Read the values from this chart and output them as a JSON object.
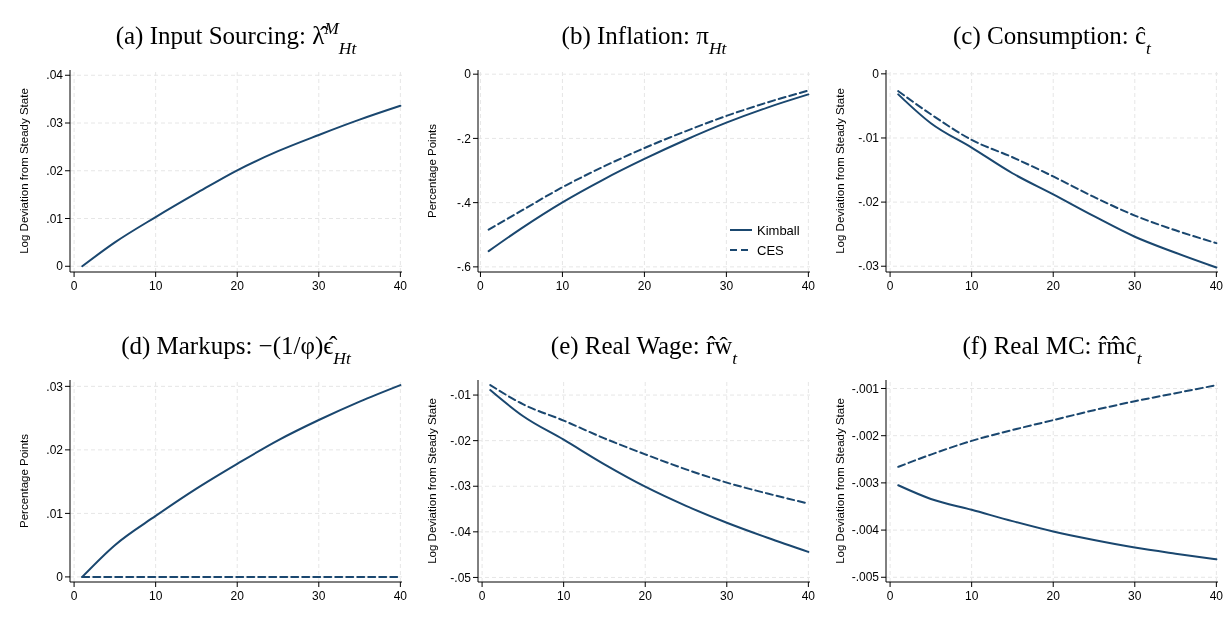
{
  "chart_data": [
    {
      "type": "line",
      "title": "(a) Input Sourcing: λ̂$^{M}$$_{Ht}$",
      "ylabel": "Log Deviation from Steady State",
      "x": [
        1,
        5,
        10,
        15,
        20,
        25,
        30,
        35,
        40
      ],
      "xlim": [
        -0.5,
        40.2
      ],
      "xticks": [
        0,
        10,
        20,
        30,
        40
      ],
      "ylim": [
        -0.0012,
        0.0411
      ],
      "yticks": [
        {
          "value": 0,
          "label": "0"
        },
        {
          "value": 0.01,
          "label": ".01"
        },
        {
          "value": 0.02,
          "label": ".02"
        },
        {
          "value": 0.03,
          "label": ".03"
        },
        {
          "value": 0.04,
          "label": ".04"
        }
      ],
      "grid": true,
      "legend": false,
      "series": [
        {
          "color": "#1a476f",
          "line_style": "solid",
          "values": [
            0,
            0.005,
            0.0103,
            0.0153,
            0.0201,
            0.0241,
            0.0275,
            0.0307,
            0.0336
          ]
        }
      ]
    },
    {
      "type": "line",
      "title": "(b) Inflation: π$_{Ht}$",
      "ylabel": "Percentage Points",
      "x": [
        1,
        5,
        10,
        15,
        20,
        25,
        30,
        35,
        40
      ],
      "xlim": [
        -0.3,
        40.2
      ],
      "xticks": [
        0,
        10,
        20,
        30,
        40
      ],
      "ylim": [
        -0.616,
        0.013
      ],
      "yticks": [
        {
          "value": -0.6,
          "label": "-.6"
        },
        {
          "value": -0.4,
          "label": "-.4"
        },
        {
          "value": -0.2,
          "label": "-.2"
        },
        {
          "value": 0,
          "label": "0"
        }
      ],
      "grid": true,
      "legend": "bottom right",
      "series": [
        {
          "name": "Kimball",
          "color": "#1a476f",
          "line_style": "solid",
          "values": [
            -0.551,
            -0.48,
            -0.399,
            -0.328,
            -0.264,
            -0.205,
            -0.151,
            -0.104,
            -0.063
          ]
        },
        {
          "name": "CES",
          "color": "#1a476f",
          "line_style": "dashed",
          "values": [
            -0.484,
            -0.425,
            -0.352,
            -0.288,
            -0.23,
            -0.178,
            -0.13,
            -0.088,
            -0.051
          ]
        }
      ]
    },
    {
      "type": "line",
      "title": "(c) Consumption: ĉ$_{t}$",
      "ylabel": "Log Deviation from Steady State",
      "x": [
        1,
        5,
        10,
        15,
        20,
        25,
        30,
        35,
        40
      ],
      "xlim": [
        -0.5,
        40.2
      ],
      "xticks": [
        0,
        10,
        20,
        30,
        40
      ],
      "ylim": [
        -0.0309,
        0.0006
      ],
      "yticks": [
        {
          "value": -0.03,
          "label": "-.03"
        },
        {
          "value": -0.02,
          "label": "-.02"
        },
        {
          "value": -0.01,
          "label": "-.01"
        },
        {
          "value": 0,
          "label": "0"
        }
      ],
      "grid": true,
      "legend": false,
      "series": [
        {
          "color": "#1a476f",
          "line_style": "solid",
          "values": [
            -0.0032,
            -0.0077,
            -0.0115,
            -0.0155,
            -0.0188,
            -0.0222,
            -0.0254,
            -0.0279,
            -0.0302
          ]
        },
        {
          "color": "#1a476f",
          "line_style": "dashed",
          "values": [
            -0.0027,
            -0.0063,
            -0.0103,
            -0.013,
            -0.016,
            -0.0192,
            -0.0221,
            -0.0244,
            -0.0264
          ]
        }
      ]
    },
    {
      "type": "line",
      "title": "(d) Markups: −(1/φ)ϵ̂$_{Ht}$",
      "ylabel": "Percentage Points",
      "x": [
        1,
        5,
        10,
        15,
        20,
        25,
        30,
        35,
        40
      ],
      "xlim": [
        -0.5,
        40.2
      ],
      "xticks": [
        0,
        10,
        20,
        30,
        40
      ],
      "ylim": [
        -0.0008,
        0.031
      ],
      "yticks": [
        {
          "value": 0,
          "label": "0"
        },
        {
          "value": 0.01,
          "label": ".01"
        },
        {
          "value": 0.02,
          "label": ".02"
        },
        {
          "value": 0.03,
          "label": ".03"
        }
      ],
      "grid": true,
      "legend": false,
      "series": [
        {
          "color": "#1a476f",
          "line_style": "solid",
          "values": [
            0,
            0.005,
            0.0096,
            0.0139,
            0.0178,
            0.0215,
            0.0247,
            0.0276,
            0.0302
          ]
        },
        {
          "color": "#1a476f",
          "line_style": "dashed",
          "values": [
            0,
            0,
            0,
            0,
            0,
            0,
            0,
            0,
            0
          ]
        }
      ]
    },
    {
      "type": "line",
      "title": "(e) Real Wage: r̂ŵ$_{t}$",
      "ylabel": "Log Deviation from Steady State",
      "x": [
        1,
        5,
        10,
        15,
        20,
        25,
        30,
        35,
        40
      ],
      "xlim": [
        -0.5,
        40.2
      ],
      "xticks": [
        0,
        10,
        20,
        30,
        40
      ],
      "ylim": [
        -0.051,
        -0.0067
      ],
      "yticks": [
        {
          "value": -0.05,
          "label": "-.05"
        },
        {
          "value": -0.04,
          "label": "-.04"
        },
        {
          "value": -0.03,
          "label": "-.03"
        },
        {
          "value": -0.02,
          "label": "-.02"
        },
        {
          "value": -0.01,
          "label": "-.01"
        }
      ],
      "grid": true,
      "legend": false,
      "series": [
        {
          "color": "#1a476f",
          "line_style": "solid",
          "values": [
            -0.0089,
            -0.0146,
            -0.0198,
            -0.0252,
            -0.0301,
            -0.0343,
            -0.038,
            -0.0413,
            -0.0444
          ]
        },
        {
          "color": "#1a476f",
          "line_style": "dashed",
          "values": [
            -0.0078,
            -0.012,
            -0.0156,
            -0.0195,
            -0.023,
            -0.0263,
            -0.0292,
            -0.0316,
            -0.0338
          ]
        }
      ]
    },
    {
      "type": "line",
      "title": "(f) Real MC: r̂m̂ĉ$_{t}$",
      "ylabel": "Log Deviation from Steady State",
      "x": [
        1,
        5,
        10,
        15,
        20,
        25,
        30,
        35,
        40
      ],
      "xlim": [
        -0.5,
        40.2
      ],
      "xticks": [
        0,
        10,
        20,
        30,
        40
      ],
      "ylim": [
        -0.0051,
        -0.00082
      ],
      "yticks": [
        {
          "value": -0.005,
          "label": "-.005"
        },
        {
          "value": -0.004,
          "label": "-.004"
        },
        {
          "value": -0.003,
          "label": "-.003"
        },
        {
          "value": -0.002,
          "label": "-.002"
        },
        {
          "value": -0.001,
          "label": "-.001"
        }
      ],
      "grid": true,
      "legend": false,
      "series": [
        {
          "color": "#1a476f",
          "line_style": "solid",
          "values": [
            -0.00305,
            -0.00334,
            -0.00357,
            -0.00381,
            -0.00403,
            -0.00421,
            -0.00437,
            -0.0045,
            -0.00462
          ]
        },
        {
          "color": "#1a476f",
          "line_style": "dashed",
          "values": [
            -0.00266,
            -0.0024,
            -0.00211,
            -0.00188,
            -0.00167,
            -0.00146,
            -0.00127,
            -0.0011,
            -0.00093
          ]
        }
      ]
    }
  ]
}
